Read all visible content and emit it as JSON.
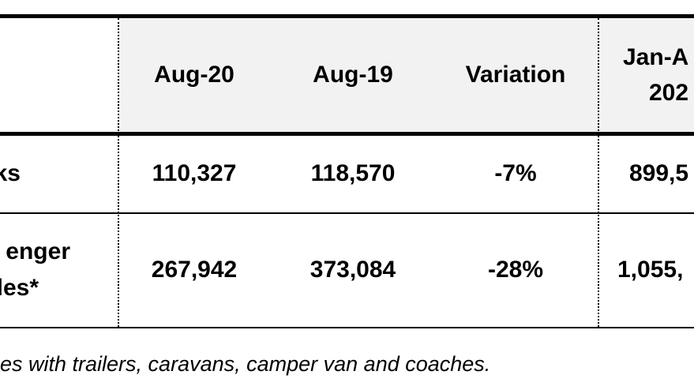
{
  "table": {
    "header": {
      "cells": [
        "Aug-20",
        "Aug-19",
        "Variation"
      ],
      "cut_cell": [
        "Jan-A",
        "202"
      ]
    },
    "rows": [
      {
        "label": [
          "ks"
        ],
        "cells": [
          "110,327",
          "118,570",
          "-7%",
          "899,5"
        ]
      },
      {
        "label": [
          "enger",
          "les*"
        ],
        "cells": [
          "267,942",
          "373,084",
          "-28%",
          "1,055,"
        ]
      }
    ]
  },
  "footnote": "es with trailers, caravans, camper van and coaches."
}
